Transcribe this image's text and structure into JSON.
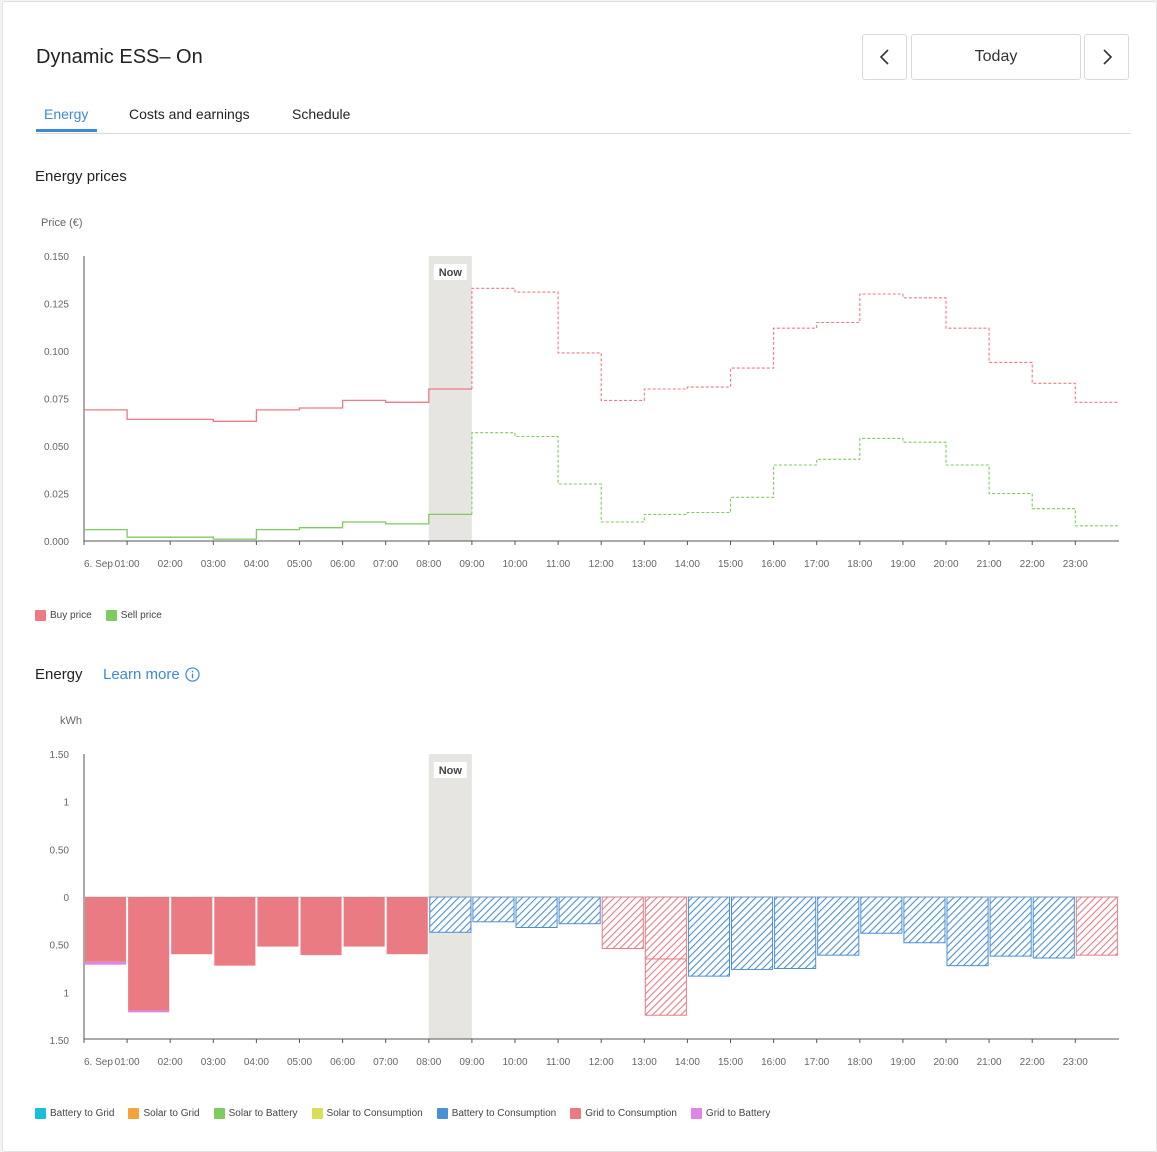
{
  "header": {
    "title": "Dynamic ESS– On",
    "today_label": "Today",
    "prev_icon": "chevron-left-icon",
    "next_icon": "chevron-right-icon"
  },
  "tabs": [
    {
      "label": "Energy",
      "active": true
    },
    {
      "label": "Costs and earnings",
      "active": false
    },
    {
      "label": "Schedule",
      "active": false
    }
  ],
  "prices_section": {
    "title": "Energy prices"
  },
  "energy_section": {
    "title": "Energy",
    "learn_more": "Learn more",
    "info_icon": "info-icon"
  },
  "now_label": "Now",
  "colors": {
    "buy": "#f07a82",
    "sell": "#7ecb5f",
    "grid_to_consumption": "#ea7b83",
    "battery_to_consumption": "#4a90d6",
    "grid_to_battery": "#dd86e8",
    "axis": "#555",
    "now_band": "#e6e5e2",
    "accent": "#3b8ad9"
  },
  "chart_data": [
    {
      "type": "line",
      "step": true,
      "title": "Energy prices",
      "ylabel": "Price (€)",
      "ylim": [
        0,
        0.15
      ],
      "yticks": [
        "0.000",
        "0.025",
        "0.050",
        "0.075",
        "0.100",
        "0.125",
        "0.150"
      ],
      "x": [
        "6. Sep",
        "01:00",
        "02:00",
        "03:00",
        "04:00",
        "05:00",
        "06:00",
        "07:00",
        "08:00",
        "09:00",
        "10:00",
        "11:00",
        "12:00",
        "13:00",
        "14:00",
        "15:00",
        "16:00",
        "17:00",
        "18:00",
        "19:00",
        "20:00",
        "21:00",
        "22:00",
        "23:00"
      ],
      "now_hour": 8,
      "series": [
        {
          "name": "Buy price",
          "color": "#f07a82",
          "values": [
            0.069,
            0.064,
            0.064,
            0.063,
            0.069,
            0.07,
            0.074,
            0.073,
            0.08,
            0.133,
            0.131,
            0.099,
            0.074,
            0.08,
            0.081,
            0.091,
            0.112,
            0.115,
            0.13,
            0.128,
            0.112,
            0.094,
            0.083,
            0.073
          ]
        },
        {
          "name": "Sell price",
          "color": "#7ecb5f",
          "values": [
            0.006,
            0.002,
            0.002,
            0.001,
            0.006,
            0.007,
            0.01,
            0.009,
            0.014,
            0.057,
            0.055,
            0.03,
            0.01,
            0.014,
            0.015,
            0.023,
            0.04,
            0.043,
            0.054,
            0.052,
            0.04,
            0.025,
            0.017,
            0.008
          ]
        }
      ],
      "legend": [
        "Buy price",
        "Sell price"
      ]
    },
    {
      "type": "bar",
      "stacked": true,
      "title": "Energy",
      "ylabel": "kWh",
      "ylim": [
        -1.5,
        1.5
      ],
      "yticks": [
        "1.50",
        "1",
        "0.50",
        "0",
        "0.50",
        "1",
        "1.50"
      ],
      "categories": [
        "6. Sep",
        "01:00",
        "02:00",
        "03:00",
        "04:00",
        "05:00",
        "06:00",
        "07:00",
        "08:00",
        "09:00",
        "10:00",
        "11:00",
        "12:00",
        "13:00",
        "14:00",
        "15:00",
        "16:00",
        "17:00",
        "18:00",
        "19:00",
        "20:00",
        "21:00",
        "22:00",
        "23:00"
      ],
      "now_hour": 8,
      "series": [
        {
          "name": "Grid to Consumption",
          "color": "#ea7b83",
          "values": [
            -0.68,
            -1.19,
            -0.6,
            -0.72,
            -0.52,
            -0.61,
            -0.52,
            -0.6,
            0,
            0,
            0,
            0,
            -0.54,
            -0.65,
            0,
            0,
            0,
            0,
            0,
            0,
            0,
            0,
            0,
            -0.61
          ]
        },
        {
          "name": "Grid to Consumption (planned)",
          "color": "#ea7b83",
          "values": [
            0,
            0,
            0,
            0,
            0,
            0,
            0,
            0,
            0,
            0,
            0,
            0,
            0,
            -0.59,
            0,
            0,
            0,
            0,
            0,
            0,
            0,
            0,
            0,
            0
          ]
        },
        {
          "name": "Battery to Consumption",
          "color": "#4a90d6",
          "values": [
            0,
            0,
            0,
            0,
            0,
            0,
            0,
            0,
            -0.37,
            -0.26,
            -0.32,
            -0.28,
            0,
            0,
            -0.83,
            -0.76,
            -0.75,
            -0.61,
            -0.38,
            -0.48,
            -0.72,
            -0.62,
            -0.64,
            0
          ]
        },
        {
          "name": "Grid to Battery",
          "color": "#dd86e8",
          "values": [
            -0.03,
            -0.02,
            0,
            0,
            0,
            0,
            0,
            0,
            0,
            0,
            0,
            0,
            0,
            0,
            0,
            0,
            0,
            0,
            0,
            0,
            0,
            0,
            0,
            0
          ]
        }
      ],
      "legend": [
        {
          "name": "Battery to Grid",
          "color": "#17bfd9"
        },
        {
          "name": "Solar to Grid",
          "color": "#f5a43a"
        },
        {
          "name": "Solar to Battery",
          "color": "#7ecb5f"
        },
        {
          "name": "Solar to Consumption",
          "color": "#d6df55"
        },
        {
          "name": "Battery to Consumption",
          "color": "#4a90d6"
        },
        {
          "name": "Grid to Consumption",
          "color": "#ea7b83"
        },
        {
          "name": "Grid to Battery",
          "color": "#dd86e8"
        }
      ]
    }
  ]
}
